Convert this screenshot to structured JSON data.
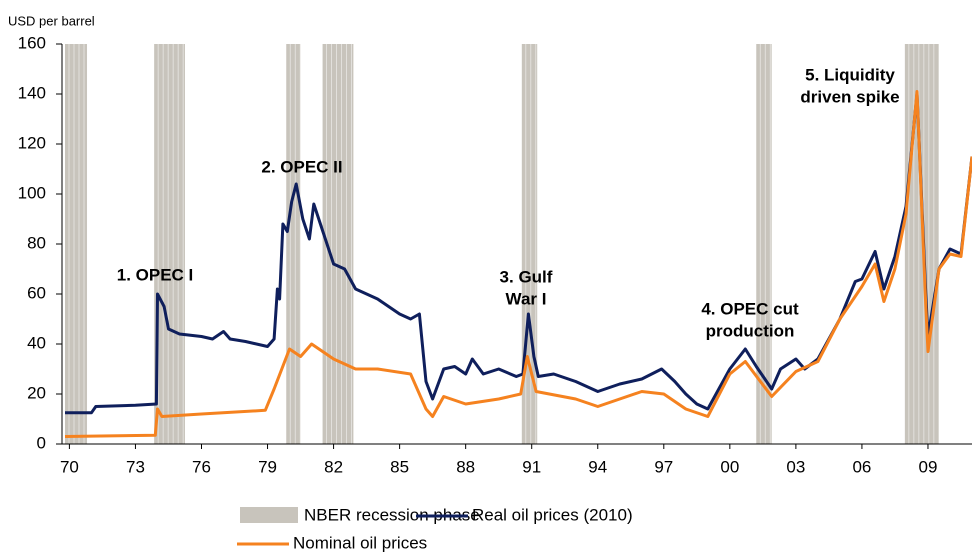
{
  "chart_data": {
    "type": "line",
    "y_axis_label": "USD per barrel",
    "xlim": [
      1969.8,
      2011
    ],
    "xticks": [
      {
        "value": 1970,
        "label": "70"
      },
      {
        "value": 1973,
        "label": "73"
      },
      {
        "value": 1976,
        "label": "76"
      },
      {
        "value": 1979,
        "label": "79"
      },
      {
        "value": 1982,
        "label": "82"
      },
      {
        "value": 1985,
        "label": "85"
      },
      {
        "value": 1988,
        "label": "88"
      },
      {
        "value": 1991,
        "label": "91"
      },
      {
        "value": 1994,
        "label": "94"
      },
      {
        "value": 1997,
        "label": "97"
      },
      {
        "value": 2000,
        "label": "00"
      },
      {
        "value": 2003,
        "label": "03"
      },
      {
        "value": 2006,
        "label": "06"
      },
      {
        "value": 2009,
        "label": "09"
      }
    ],
    "ylim": [
      0,
      160
    ],
    "yticks": [
      0,
      20,
      40,
      60,
      80,
      100,
      120,
      140,
      160
    ],
    "recessions": {
      "name": "NBER recession phase",
      "color": "#c8c4bc",
      "periods": [
        [
          1969.8,
          1970.8
        ],
        [
          1973.85,
          1975.25
        ],
        [
          1979.85,
          1980.5
        ],
        [
          1981.5,
          1982.9
        ],
        [
          1990.55,
          1991.25
        ],
        [
          2001.2,
          2001.9
        ],
        [
          2007.95,
          2009.5
        ]
      ]
    },
    "series": [
      {
        "name": "Real oil prices (2010)",
        "color": "#0f1f5c",
        "x": [
          1969.8,
          1971,
          1971.2,
          1973,
          1973.95,
          1974.0,
          1974.3,
          1974.5,
          1975,
          1976,
          1976.5,
          1977,
          1977.3,
          1978,
          1979,
          1979.3,
          1979.45,
          1979.55,
          1979.7,
          1979.9,
          1980.1,
          1980.3,
          1980.6,
          1980.9,
          1981.1,
          1981.4,
          1981.7,
          1982,
          1982.5,
          1983,
          1983.5,
          1984,
          1984.5,
          1985,
          1985.5,
          1985.9,
          1986.2,
          1986.5,
          1987,
          1987.5,
          1988,
          1988.3,
          1988.8,
          1989.5,
          1990.3,
          1990.6,
          1990.85,
          1991.1,
          1991.3,
          1992,
          1993,
          1994,
          1995,
          1996,
          1996.9,
          1997.5,
          1998,
          1998.5,
          1999,
          1999.5,
          2000,
          2000.7,
          2001.2,
          2001.9,
          2002.3,
          2003,
          2003.4,
          2004,
          2004.5,
          2005,
          2005.7,
          2006,
          2006.6,
          2007,
          2007.5,
          2008,
          2008.5,
          2008.9,
          2009,
          2009.5,
          2010,
          2010.5,
          2011
        ],
        "values": [
          12.5,
          12.5,
          15,
          15.5,
          16,
          60,
          55,
          46,
          44,
          43,
          42,
          45,
          42,
          41,
          39,
          42,
          62,
          58,
          88,
          85,
          97,
          104,
          90,
          82,
          96,
          88,
          80,
          72,
          70,
          62,
          60,
          58,
          55,
          52,
          50,
          52,
          25,
          18,
          30,
          31,
          28,
          34,
          28,
          30,
          27,
          28,
          52,
          35,
          27,
          28,
          25,
          21,
          24,
          26,
          30,
          25,
          20,
          16,
          14,
          22,
          30,
          38,
          31,
          22,
          30,
          34,
          30,
          34,
          42,
          50,
          65,
          66,
          77,
          62,
          75,
          95,
          140,
          60,
          43,
          70,
          78,
          76,
          115
        ]
      },
      {
        "name": "Nominal oil prices",
        "color": "#f5821f",
        "x": [
          1969.8,
          1973.9,
          1974,
          1974.2,
          1976,
          1978.9,
          1979.3,
          1980,
          1980.5,
          1981,
          1982,
          1983,
          1984,
          1985.5,
          1986.2,
          1986.5,
          1987,
          1988,
          1989.5,
          1990.5,
          1990.8,
          1991.2,
          1993,
          1994,
          1996,
          1997,
          1998,
          1999,
          2000,
          2000.7,
          2001.9,
          2003,
          2004,
          2005,
          2006,
          2006.6,
          2007,
          2007.5,
          2008,
          2008.5,
          2008.9,
          2009,
          2009.5,
          2010,
          2010.5,
          2011
        ],
        "values": [
          3,
          3.5,
          14,
          11,
          12,
          13.5,
          22,
          38,
          35,
          40,
          34,
          30,
          30,
          28,
          14,
          11,
          19,
          16,
          18,
          20,
          35,
          21,
          18,
          15,
          21,
          20,
          14,
          11,
          28,
          33,
          19,
          29,
          33,
          50,
          63,
          72,
          57,
          70,
          92,
          141,
          55,
          37,
          70,
          76,
          75,
          115
        ]
      }
    ],
    "annotations": [
      {
        "lines": [
          "1. OPEC I"
        ]
      },
      {
        "lines": [
          "2. OPEC II"
        ]
      },
      {
        "lines": [
          "3. Gulf",
          "War I"
        ]
      },
      {
        "lines": [
          "4. OPEC cut",
          "production"
        ]
      },
      {
        "lines": [
          "5. Liquidity",
          "driven spike"
        ]
      }
    ]
  }
}
